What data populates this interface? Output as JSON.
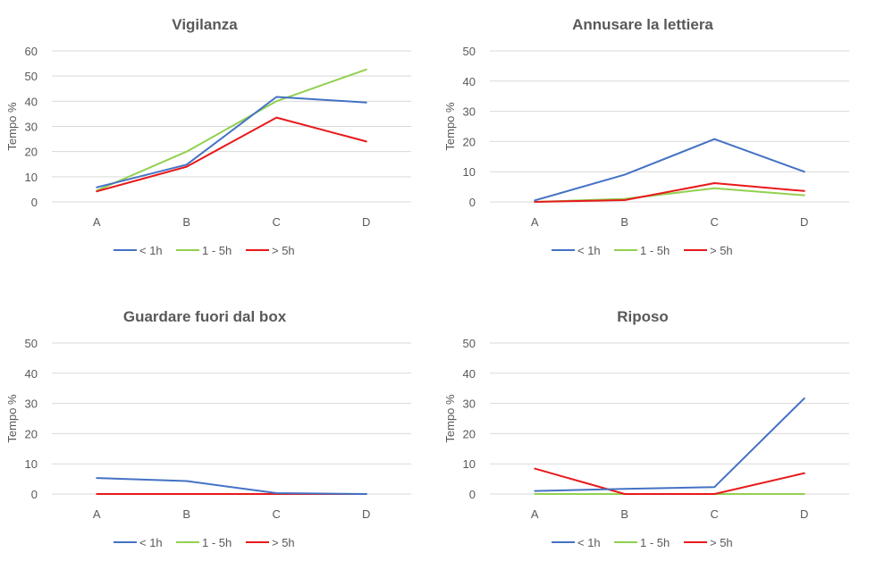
{
  "colors": {
    "lt1h": "#4472C4",
    "1to5h": "#92D050",
    "gt5h": "#E8191B",
    "grid": "#D9D9D9",
    "text": "#595959"
  },
  "chart_data": [
    {
      "type": "line",
      "title": "Vigilanza",
      "ylabel": "Tempo %",
      "xlabel": "",
      "categories": [
        "A",
        "B",
        "C",
        "D"
      ],
      "ylim": [
        0,
        60
      ],
      "yticks": [
        0,
        10,
        20,
        30,
        40,
        50,
        60
      ],
      "grid": true,
      "legend": "bottom",
      "series": [
        {
          "name": "< 1h",
          "color": "#4472C4",
          "values": [
            5.8,
            14.8,
            41.7,
            39.5
          ]
        },
        {
          "name": "1 - 5h",
          "color": "#92D050",
          "values": [
            4.5,
            20.0,
            40.0,
            52.6
          ]
        },
        {
          "name": "> 5h",
          "color": "#E8191B",
          "values": [
            4.2,
            14.0,
            33.5,
            24.0
          ]
        }
      ]
    },
    {
      "type": "line",
      "title": "Annusare la lettiera",
      "ylabel": "Tempo %",
      "xlabel": "",
      "categories": [
        "A",
        "B",
        "C",
        "D"
      ],
      "ylim": [
        0,
        50
      ],
      "yticks": [
        0,
        10,
        20,
        30,
        40,
        50
      ],
      "grid": true,
      "legend": "bottom",
      "series": [
        {
          "name": "< 1h",
          "color": "#4472C4",
          "values": [
            0.5,
            9.0,
            20.8,
            10.0
          ]
        },
        {
          "name": "1 - 5h",
          "color": "#92D050",
          "values": [
            0.0,
            1.0,
            4.5,
            2.2
          ]
        },
        {
          "name": "> 5h",
          "color": "#E8191B",
          "values": [
            0.0,
            0.6,
            6.2,
            3.6
          ]
        }
      ]
    },
    {
      "type": "line",
      "title": "Guardare fuori dal box",
      "ylabel": "Tempo %",
      "xlabel": "",
      "categories": [
        "A",
        "B",
        "C",
        "D"
      ],
      "ylim": [
        0,
        50
      ],
      "yticks": [
        0,
        10,
        20,
        30,
        40,
        50
      ],
      "grid": true,
      "legend": "bottom",
      "series": [
        {
          "name": "< 1h",
          "color": "#4472C4",
          "values": [
            5.3,
            4.3,
            0.3,
            0.0
          ]
        },
        {
          "name": "1 - 5h",
          "color": "#92D050",
          "values": [
            0.0,
            0.0,
            0.0,
            0.0
          ]
        },
        {
          "name": "> 5h",
          "color": "#E8191B",
          "values": [
            0.0,
            0.0,
            0.0,
            0.0
          ]
        }
      ]
    },
    {
      "type": "line",
      "title": "Riposo",
      "ylabel": "Tempo %",
      "xlabel": "",
      "categories": [
        "A",
        "B",
        "C",
        "D"
      ],
      "ylim": [
        0,
        50
      ],
      "yticks": [
        0,
        10,
        20,
        30,
        40,
        50
      ],
      "grid": true,
      "legend": "bottom",
      "series": [
        {
          "name": "< 1h",
          "color": "#4472C4",
          "values": [
            1.0,
            1.7,
            2.3,
            31.7
          ]
        },
        {
          "name": "1 - 5h",
          "color": "#92D050",
          "values": [
            0.0,
            0.0,
            0.0,
            0.0
          ]
        },
        {
          "name": "> 5h",
          "color": "#E8191B",
          "values": [
            8.4,
            0.0,
            0.0,
            6.9
          ]
        }
      ]
    }
  ]
}
